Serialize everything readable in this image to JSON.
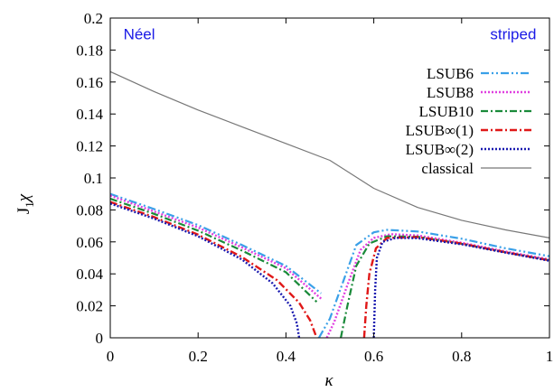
{
  "chart_data": {
    "type": "line",
    "xlabel": "κ",
    "ylabel_main": "J",
    "ylabel_sub": "1",
    "ylabel_tail": "χ",
    "xlim": [
      0,
      1
    ],
    "ylim": [
      0,
      0.2
    ],
    "xticks": [
      0,
      0.2,
      0.4,
      0.6,
      0.8,
      1
    ],
    "xtick_labels": [
      "0",
      "0.2",
      "0.4",
      "0.6",
      "0.8",
      "1"
    ],
    "yticks": [
      0,
      0.02,
      0.04,
      0.06,
      0.08,
      0.1,
      0.12,
      0.14,
      0.16,
      0.18,
      0.2
    ],
    "ytick_labels": [
      "0",
      "0.02",
      "0.04",
      "0.06",
      "0.08",
      "0.1",
      "0.12",
      "0.14",
      "0.16",
      "0.18",
      "0.2"
    ],
    "legend_position": "top-right",
    "annotations": [
      {
        "text": "Néel",
        "x": 0.03,
        "y": 0.19,
        "anchor": "start",
        "color": "#1a1ae6"
      },
      {
        "text": "striped",
        "x": 0.97,
        "y": 0.19,
        "anchor": "end",
        "color": "#1a1ae6"
      }
    ],
    "series": [
      {
        "name": "LSUB6",
        "color": "#3aa0e8",
        "dash": "9 3 2 3 2 3",
        "width": 2.2,
        "segments": [
          [
            [
              0,
              0.09
            ],
            [
              0.1,
              0.0805
            ],
            [
              0.2,
              0.0705
            ],
            [
              0.3,
              0.058
            ],
            [
              0.4,
              0.045
            ],
            [
              0.48,
              0.0278
            ]
          ],
          [
            [
              0.475,
              0.0
            ],
            [
              0.5,
              0.012
            ],
            [
              0.53,
              0.035
            ],
            [
              0.56,
              0.058
            ],
            [
              0.6,
              0.066
            ],
            [
              0.63,
              0.0675
            ],
            [
              0.7,
              0.0665
            ],
            [
              0.8,
              0.062
            ],
            [
              0.9,
              0.056
            ],
            [
              1.0,
              0.051
            ]
          ]
        ]
      },
      {
        "name": "LSUB8",
        "color": "#e040e0",
        "dash": "2 2",
        "width": 2.4,
        "segments": [
          [
            [
              0,
              0.089
            ],
            [
              0.1,
              0.079
            ],
            [
              0.2,
              0.069
            ],
            [
              0.3,
              0.0565
            ],
            [
              0.4,
              0.0435
            ],
            [
              0.48,
              0.0245
            ]
          ],
          [
            [
              0.493,
              0.0
            ],
            [
              0.51,
              0.01
            ],
            [
              0.54,
              0.033
            ],
            [
              0.57,
              0.055
            ],
            [
              0.6,
              0.0625
            ],
            [
              0.64,
              0.0648
            ],
            [
              0.7,
              0.064
            ],
            [
              0.8,
              0.0595
            ],
            [
              0.9,
              0.054
            ],
            [
              1.0,
              0.049
            ]
          ]
        ]
      },
      {
        "name": "LSUB10",
        "color": "#1a8a3a",
        "dash": "8 3 2 3",
        "width": 2.2,
        "segments": [
          [
            [
              0,
              0.087
            ],
            [
              0.1,
              0.0775
            ],
            [
              0.2,
              0.067
            ],
            [
              0.3,
              0.0545
            ],
            [
              0.4,
              0.041
            ],
            [
              0.47,
              0.0225
            ]
          ],
          [
            [
              0.525,
              0.0
            ],
            [
              0.54,
              0.02
            ],
            [
              0.56,
              0.045
            ],
            [
              0.59,
              0.059
            ],
            [
              0.63,
              0.0635
            ],
            [
              0.7,
              0.0632
            ],
            [
              0.8,
              0.0588
            ],
            [
              0.9,
              0.0535
            ],
            [
              1.0,
              0.0485
            ]
          ]
        ]
      },
      {
        "name": "LSUB∞(1)",
        "color": "#e01818",
        "dash": "8 3 2 3",
        "width": 2.4,
        "segments": [
          [
            [
              0,
              0.085
            ],
            [
              0.1,
              0.0755
            ],
            [
              0.2,
              0.0645
            ],
            [
              0.3,
              0.0505
            ],
            [
              0.38,
              0.036
            ],
            [
              0.43,
              0.022
            ],
            [
              0.455,
              0.011
            ],
            [
              0.47,
              0.0
            ]
          ],
          [
            [
              0.578,
              0.0
            ],
            [
              0.583,
              0.02
            ],
            [
              0.59,
              0.04
            ],
            [
              0.605,
              0.056
            ],
            [
              0.63,
              0.0625
            ],
            [
              0.7,
              0.063
            ],
            [
              0.8,
              0.059
            ],
            [
              0.9,
              0.0535
            ],
            [
              1.0,
              0.0485
            ]
          ]
        ]
      },
      {
        "name": "LSUB∞(2)",
        "color": "#1a1ab0",
        "dash": "2 2",
        "width": 2.4,
        "segments": [
          [
            [
              0,
              0.084
            ],
            [
              0.1,
              0.0745
            ],
            [
              0.2,
              0.0635
            ],
            [
              0.3,
              0.049
            ],
            [
              0.37,
              0.034
            ],
            [
              0.41,
              0.02
            ],
            [
              0.425,
              0.009
            ],
            [
              0.43,
              0.0
            ]
          ],
          [
            [
              0.6,
              0.0
            ],
            [
              0.603,
              0.03
            ],
            [
              0.607,
              0.05
            ],
            [
              0.62,
              0.06
            ],
            [
              0.65,
              0.0625
            ],
            [
              0.7,
              0.0623
            ],
            [
              0.8,
              0.0585
            ],
            [
              0.9,
              0.0533
            ],
            [
              1.0,
              0.0482
            ]
          ]
        ]
      },
      {
        "name": "classical",
        "color": "#777777",
        "dash": "",
        "width": 1.2,
        "segments": [
          [
            [
              0,
              0.1665
            ],
            [
              0.1,
              0.154
            ],
            [
              0.2,
              0.1425
            ],
            [
              0.3,
              0.132
            ],
            [
              0.4,
              0.1215
            ],
            [
              0.5,
              0.111
            ],
            [
              0.6,
              0.0935
            ],
            [
              0.7,
              0.0815
            ],
            [
              0.8,
              0.0735
            ],
            [
              0.9,
              0.0675
            ],
            [
              1.0,
              0.0625
            ]
          ]
        ]
      }
    ]
  }
}
